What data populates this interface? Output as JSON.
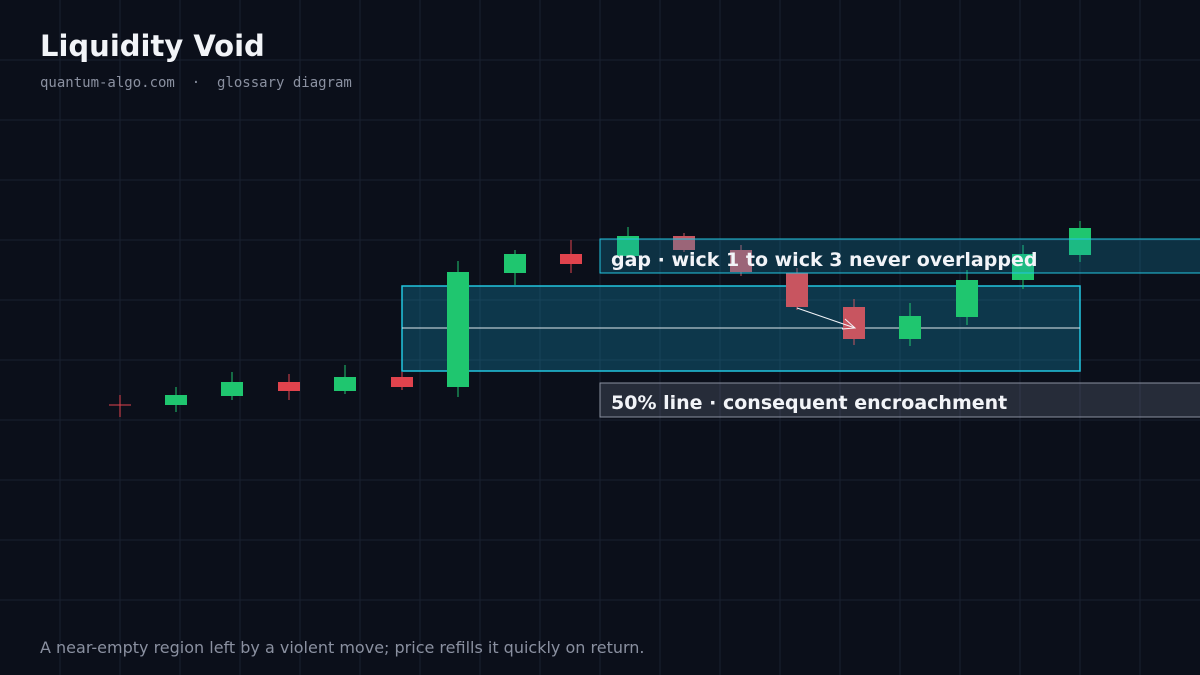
{
  "header": {
    "title": "Liquidity Void",
    "subtitle": "quantum-algo.com  ·  glossary diagram"
  },
  "annotations": {
    "gap": "gap · wick 1 to wick 3 never overlapped",
    "midline": "50% line · consequent encroachment"
  },
  "caption": "A near-empty region left by a violent move; price refills it quickly on return."
}
